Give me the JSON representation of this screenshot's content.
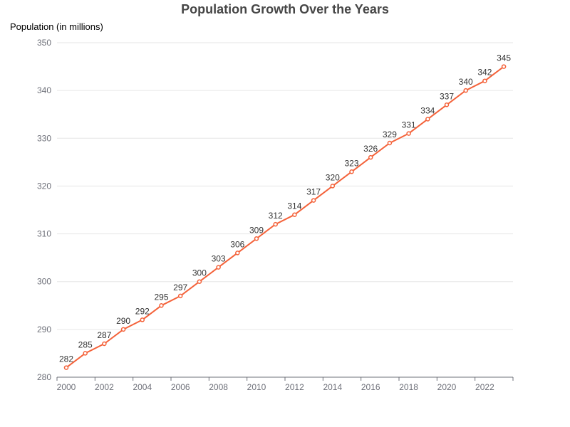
{
  "chart_data": {
    "type": "line",
    "title": "Population Growth Over the Years",
    "ylabel": "Population (in millions)",
    "xlabel": "",
    "x": [
      2000,
      2001,
      2002,
      2003,
      2004,
      2005,
      2006,
      2007,
      2008,
      2009,
      2010,
      2011,
      2012,
      2013,
      2014,
      2015,
      2016,
      2017,
      2018,
      2019,
      2020,
      2021,
      2022,
      2023
    ],
    "x_tick_labels": [
      "2000",
      "2002",
      "2004",
      "2006",
      "2008",
      "2010",
      "2012",
      "2014",
      "2016",
      "2018",
      "2020",
      "2022"
    ],
    "series": [
      {
        "values": [
          282,
          285,
          287,
          290,
          292,
          295,
          297,
          300,
          303,
          306,
          309,
          312,
          314,
          317,
          320,
          323,
          326,
          329,
          331,
          334,
          337,
          340,
          342,
          345
        ]
      }
    ],
    "ylim": [
      280,
      350
    ],
    "y_ticks": [
      280,
      290,
      300,
      310,
      320,
      330,
      340,
      350
    ],
    "data_labels": true,
    "grid": true,
    "legend": "none",
    "colors": {
      "line": "#f4623a",
      "grid": "#e6e6e6",
      "axis": "#6e7079",
      "text": "#6e7079",
      "label": "#333333",
      "title": "#464646"
    }
  }
}
